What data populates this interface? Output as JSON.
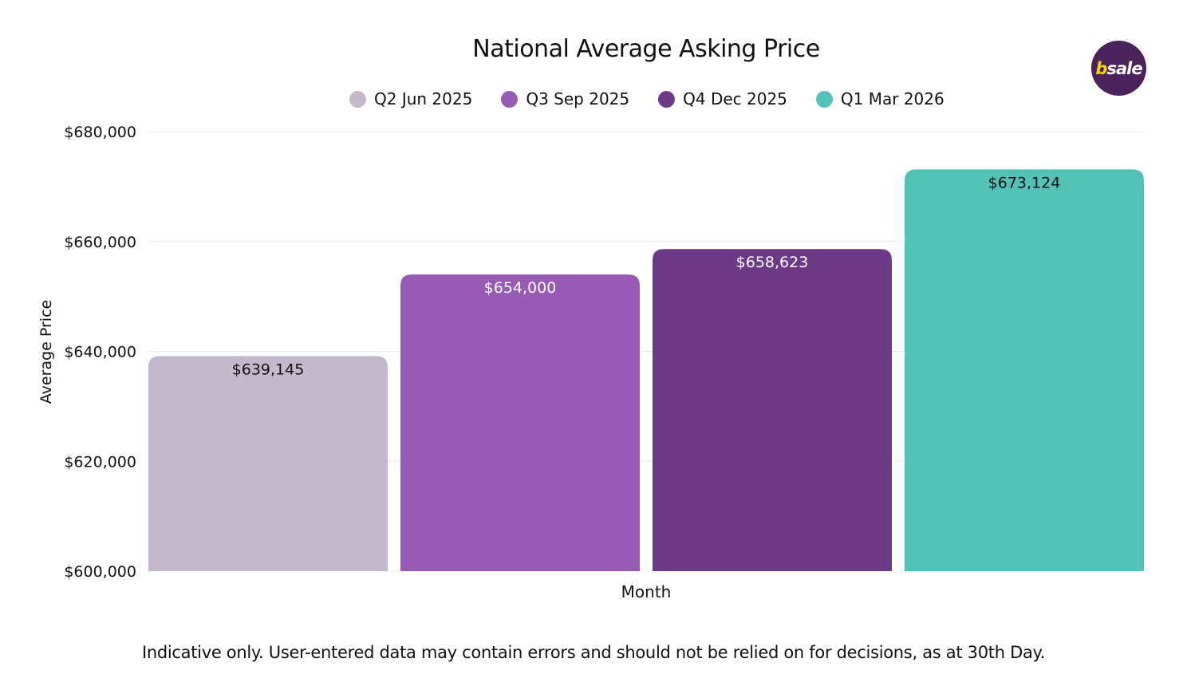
{
  "chart_data": {
    "type": "bar",
    "title": "National Average Asking Price",
    "xlabel": "Month",
    "ylabel": "Average Price",
    "ylim": [
      600000,
      680000
    ],
    "yticks": [
      600000,
      620000,
      640000,
      660000,
      680000
    ],
    "ytick_labels": [
      "$600,000",
      "$620,000",
      "$640,000",
      "$660,000",
      "$680,000"
    ],
    "grid": true,
    "legend_placement": "top",
    "series": [
      {
        "name": "Q2 Jun 2025",
        "value": 639145,
        "label": "$639,145",
        "color": "#c4b8cd",
        "label_color": "#111111"
      },
      {
        "name": "Q3 Sep 2025",
        "value": 654000,
        "label": "$654,000",
        "color": "#975bb6",
        "label_color": "#ffffff"
      },
      {
        "name": "Q4 Dec 2025",
        "value": 658623,
        "label": "$658,623",
        "color": "#6d3a87",
        "label_color": "#ffffff"
      },
      {
        "name": "Q1 Mar 2026",
        "value": 673124,
        "label": "$673,124",
        "color": "#52c1b6",
        "label_color": "#111111"
      }
    ]
  },
  "logo": {
    "text_b": "b",
    "text_rest": "sale"
  },
  "footnote": "Indicative only. User-entered data may contain errors and should not be relied on for decisions, as at 30th Day."
}
